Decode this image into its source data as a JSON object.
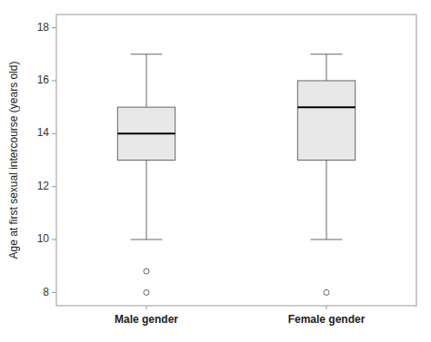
{
  "chart_data": {
    "type": "box",
    "ylabel": "Age at first sexual intercourse (years old)",
    "categories": [
      "Male gender",
      "Female gender"
    ],
    "boxes": [
      {
        "whisker_low": 10,
        "q1": 13.0,
        "median": 14.0,
        "q3": 15.0,
        "whisker_high": 17,
        "outliers": [
          8.0,
          8.8
        ]
      },
      {
        "whisker_low": 10,
        "q1": 13.0,
        "median": 15.0,
        "q3": 16.0,
        "whisker_high": 17,
        "outliers": [
          8.0
        ]
      }
    ],
    "ylim": [
      7.5,
      18.5
    ],
    "yticks": [
      8,
      10,
      12,
      14,
      16,
      18
    ],
    "color": "#e8e8e8",
    "grid": false
  }
}
